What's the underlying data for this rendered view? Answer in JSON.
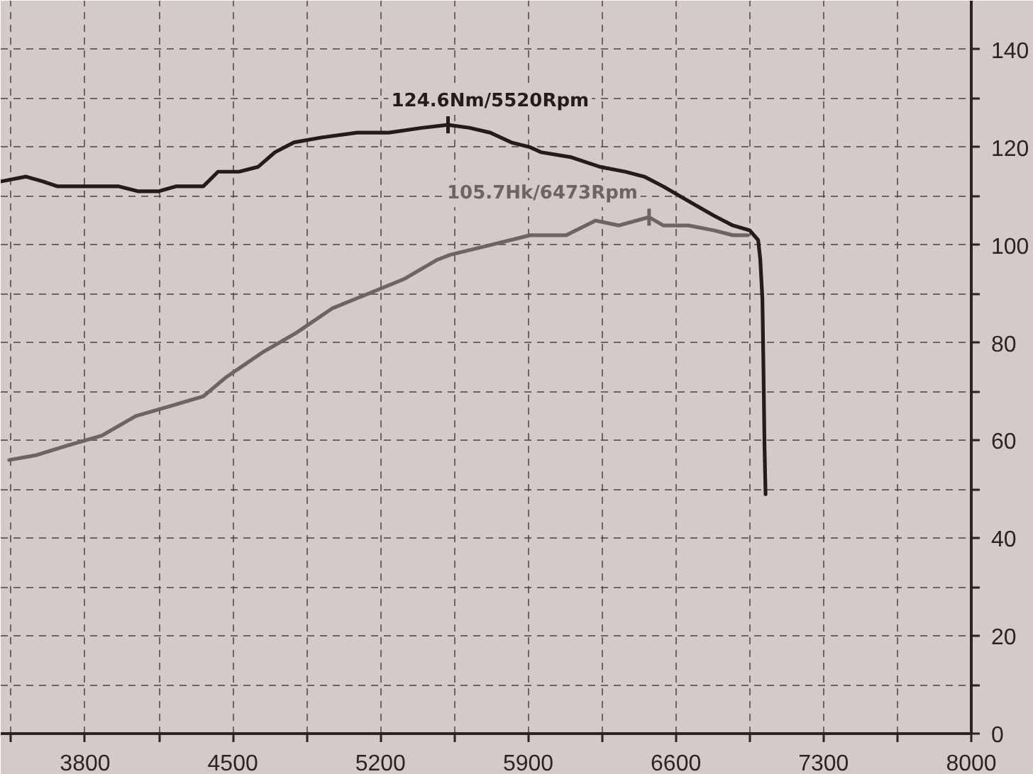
{
  "chart_data": {
    "type": "line",
    "series": [
      {
        "color": "#231c1c",
        "x": [
          3400,
          3520,
          3600,
          3670,
          3830,
          3960,
          4050,
          4150,
          4230,
          4360,
          4430,
          4530,
          4620,
          4700,
          4790,
          4920,
          5090,
          5240,
          5400,
          5520,
          5620,
          5720,
          5820,
          5910,
          5960,
          6100,
          6240,
          6360,
          6450,
          6540,
          6660,
          6780,
          6870,
          6950,
          6990,
          7000,
          7010,
          7015,
          7020,
          7025
        ],
        "values": [
          113,
          114,
          113,
          112,
          112,
          112,
          111,
          111,
          112,
          112,
          115,
          115,
          116,
          119,
          121,
          122,
          123,
          123,
          124,
          124.6,
          124,
          123,
          121,
          120,
          119,
          118,
          116,
          115,
          114,
          112,
          109,
          106,
          104,
          103,
          101,
          97,
          89,
          75,
          59,
          49
        ]
      },
      {
        "color": "#6d6463",
        "x": [
          3440,
          3570,
          3720,
          3880,
          4040,
          4200,
          4360,
          4470,
          4640,
          4800,
          4970,
          5140,
          5310,
          5470,
          5530,
          5720,
          5910,
          6080,
          6220,
          6330,
          6473,
          6540,
          6660,
          6780,
          6870,
          6940
        ],
        "values": [
          56,
          57,
          59,
          61,
          65,
          67,
          69,
          73,
          78,
          82,
          87,
          90,
          93,
          97,
          98,
          100,
          102,
          102,
          105,
          104,
          105.7,
          104,
          104,
          103,
          102,
          102
        ]
      }
    ],
    "xlim": [
      3400,
      8000
    ],
    "ylim": [
      0,
      150
    ],
    "xticks": [
      {
        "value": 3450,
        "label": null
      },
      3800,
      {
        "value": 4150,
        "label": null
      },
      4500,
      {
        "value": 4850,
        "label": null
      },
      5200,
      {
        "value": 5550,
        "label": null
      },
      5900,
      {
        "value": 6250,
        "label": null
      },
      6600,
      {
        "value": 6950,
        "label": null
      },
      7300,
      {
        "value": 7650,
        "label": null
      },
      8000
    ],
    "yticks": [
      0,
      {
        "value": 10,
        "label": null
      },
      20,
      {
        "value": 30,
        "label": null
      },
      40,
      {
        "value": 50,
        "label": null
      },
      60,
      {
        "value": 70,
        "label": null
      },
      80,
      {
        "value": 90,
        "label": null
      },
      100,
      {
        "value": 110,
        "label": null
      },
      120,
      {
        "value": 130,
        "label": null
      },
      140
    ],
    "grid": true,
    "line_style": "solid",
    "annotations": [
      {
        "text": "124.6Nm/5520Rpm",
        "x": 5520,
        "y": 124.6
      },
      {
        "text": "105.7Hk/6473Rpm",
        "x": 6473,
        "y": 105.7
      }
    ]
  }
}
